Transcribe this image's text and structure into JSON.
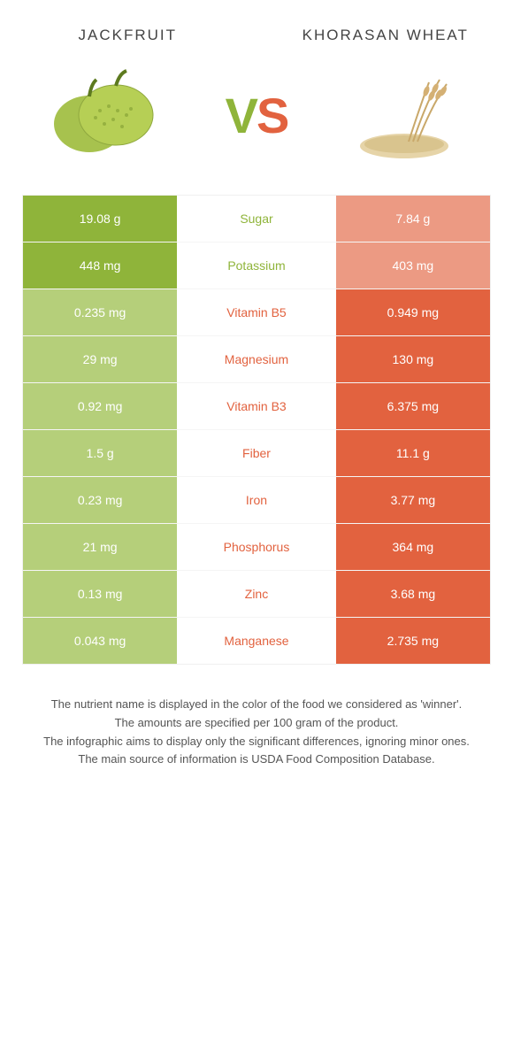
{
  "foods": {
    "left": {
      "name": "Jackfruit",
      "color": "#8fb43a",
      "dim_color": "#b5cf7a"
    },
    "right": {
      "name": "Khorasan wheat",
      "color": "#e2623f",
      "dim_color": "#ec9a83"
    }
  },
  "vs": {
    "v": "V",
    "s": "S"
  },
  "rows": [
    {
      "nutrient": "Sugar",
      "left": "19.08 g",
      "right": "7.84 g",
      "winner": "left"
    },
    {
      "nutrient": "Potassium",
      "left": "448 mg",
      "right": "403 mg",
      "winner": "left"
    },
    {
      "nutrient": "Vitamin B5",
      "left": "0.235 mg",
      "right": "0.949 mg",
      "winner": "right"
    },
    {
      "nutrient": "Magnesium",
      "left": "29 mg",
      "right": "130 mg",
      "winner": "right"
    },
    {
      "nutrient": "Vitamin B3",
      "left": "0.92 mg",
      "right": "6.375 mg",
      "winner": "right"
    },
    {
      "nutrient": "Fiber",
      "left": "1.5 g",
      "right": "11.1 g",
      "winner": "right"
    },
    {
      "nutrient": "Iron",
      "left": "0.23 mg",
      "right": "3.77 mg",
      "winner": "right"
    },
    {
      "nutrient": "Phosphorus",
      "left": "21 mg",
      "right": "364 mg",
      "winner": "right"
    },
    {
      "nutrient": "Zinc",
      "left": "0.13 mg",
      "right": "3.68 mg",
      "winner": "right"
    },
    {
      "nutrient": "Manganese",
      "left": "0.043 mg",
      "right": "2.735 mg",
      "winner": "right"
    }
  ],
  "footnotes": [
    "The nutrient name is displayed in the color of the food we considered as 'winner'.",
    "The amounts are specified per 100 gram of the product.",
    "The infographic aims to display only the significant differences, ignoring minor ones.",
    "The main source of information is USDA Food Composition Database."
  ]
}
